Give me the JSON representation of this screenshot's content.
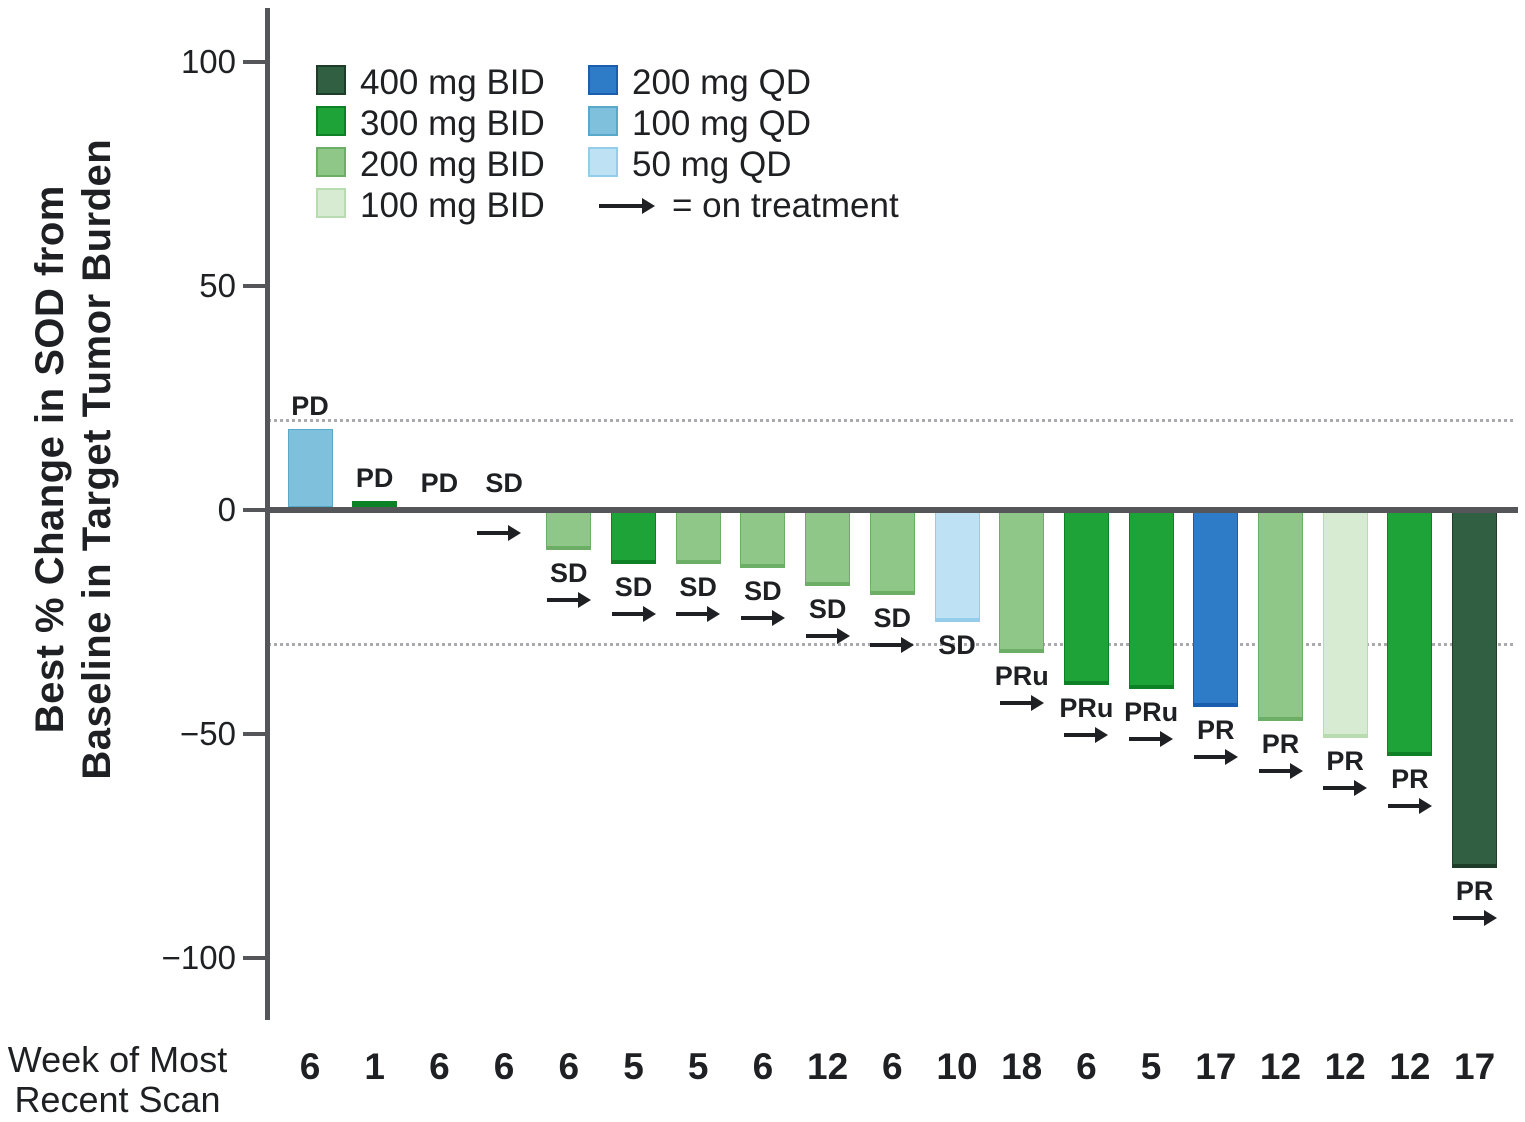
{
  "chart_data": {
    "type": "bar",
    "title": "",
    "ylabel_lines": [
      "Best % Change in SOD from",
      "Baseline in Target Tumor Burden"
    ],
    "xlabel_lines": [
      "Week of Most",
      "Recent Scan"
    ],
    "yticks": [
      100,
      50,
      0,
      -50,
      -100
    ],
    "ylim": [
      -112,
      112
    ],
    "grid": false,
    "reference_lines": [
      20,
      -30
    ],
    "legend_position": "top-left-inside",
    "legend": {
      "bid_column": [
        "400 mg BID",
        "300 mg BID",
        "200 mg BID",
        "100 mg BID"
      ],
      "qd_column": [
        "200 mg QD",
        "100 mg QD",
        "50 mg QD"
      ],
      "arrow_label": "= on treatment"
    },
    "dose_colors": {
      "400 mg BID": {
        "fill": "#315f41",
        "edge": "#1d3d29"
      },
      "300 mg BID": {
        "fill": "#1ea339",
        "edge": "#0c8125"
      },
      "200 mg BID": {
        "fill": "#8fc789",
        "edge": "#6cae65"
      },
      "100 mg BID": {
        "fill": "#d6ebd1",
        "edge": "#b8dcb0"
      },
      "200 mg QD": {
        "fill": "#2e7cc7",
        "edge": "#1a5fae"
      },
      "100 mg QD": {
        "fill": "#7fc1dc",
        "edge": "#57a8c9"
      },
      "50 mg QD": {
        "fill": "#bee2f4",
        "edge": "#93cde9"
      }
    },
    "axis_color": "#55565a",
    "refline_color": "#a9abae",
    "bars": [
      {
        "value": 18,
        "dose": "100 mg QD",
        "response": "PD",
        "on_treatment": false,
        "week": "6",
        "label_above": true
      },
      {
        "value": 2,
        "dose": "300 mg BID",
        "response": "PD",
        "on_treatment": false,
        "week": "1",
        "label_above": true
      },
      {
        "value": 0,
        "dose": null,
        "response": "PD",
        "on_treatment": false,
        "week": "6",
        "label_above": true
      },
      {
        "value": 0,
        "dose": null,
        "response": "SD",
        "on_treatment": true,
        "week": "6",
        "label_above": true
      },
      {
        "value": -9,
        "dose": "200 mg BID",
        "response": "SD",
        "on_treatment": true,
        "week": "6",
        "label_above": false
      },
      {
        "value": -12,
        "dose": "300 mg BID",
        "response": "SD",
        "on_treatment": true,
        "week": "5",
        "label_above": false
      },
      {
        "value": -12,
        "dose": "200 mg BID",
        "response": "SD",
        "on_treatment": true,
        "week": "5",
        "label_above": false
      },
      {
        "value": -13,
        "dose": "200 mg BID",
        "response": "SD",
        "on_treatment": true,
        "week": "6",
        "label_above": false
      },
      {
        "value": -17,
        "dose": "200 mg BID",
        "response": "SD",
        "on_treatment": true,
        "week": "12",
        "label_above": false
      },
      {
        "value": -19,
        "dose": "200 mg BID",
        "response": "SD",
        "on_treatment": true,
        "week": "6",
        "label_above": false
      },
      {
        "value": -25,
        "dose": "50 mg QD",
        "response": "SD",
        "on_treatment": false,
        "week": "10",
        "label_above": false
      },
      {
        "value": -32,
        "dose": "200 mg BID",
        "response": "PRu",
        "on_treatment": true,
        "week": "18",
        "label_above": false
      },
      {
        "value": -39,
        "dose": "300 mg BID",
        "response": "PRu",
        "on_treatment": true,
        "week": "6",
        "label_above": false
      },
      {
        "value": -40,
        "dose": "300 mg BID",
        "response": "PRu",
        "on_treatment": true,
        "week": "5",
        "label_above": false
      },
      {
        "value": -44,
        "dose": "200 mg QD",
        "response": "PR",
        "on_treatment": true,
        "week": "17",
        "label_above": false
      },
      {
        "value": -47,
        "dose": "200 mg BID",
        "response": "PR",
        "on_treatment": true,
        "week": "12",
        "label_above": false
      },
      {
        "value": -51,
        "dose": "100 mg BID",
        "response": "PR",
        "on_treatment": true,
        "week": "12",
        "label_above": false
      },
      {
        "value": -55,
        "dose": "300 mg BID",
        "response": "PR",
        "on_treatment": true,
        "week": "12",
        "label_above": false
      },
      {
        "value": -80,
        "dose": "400 mg BID",
        "response": "PR",
        "on_treatment": true,
        "week": "17",
        "label_above": false
      }
    ]
  }
}
